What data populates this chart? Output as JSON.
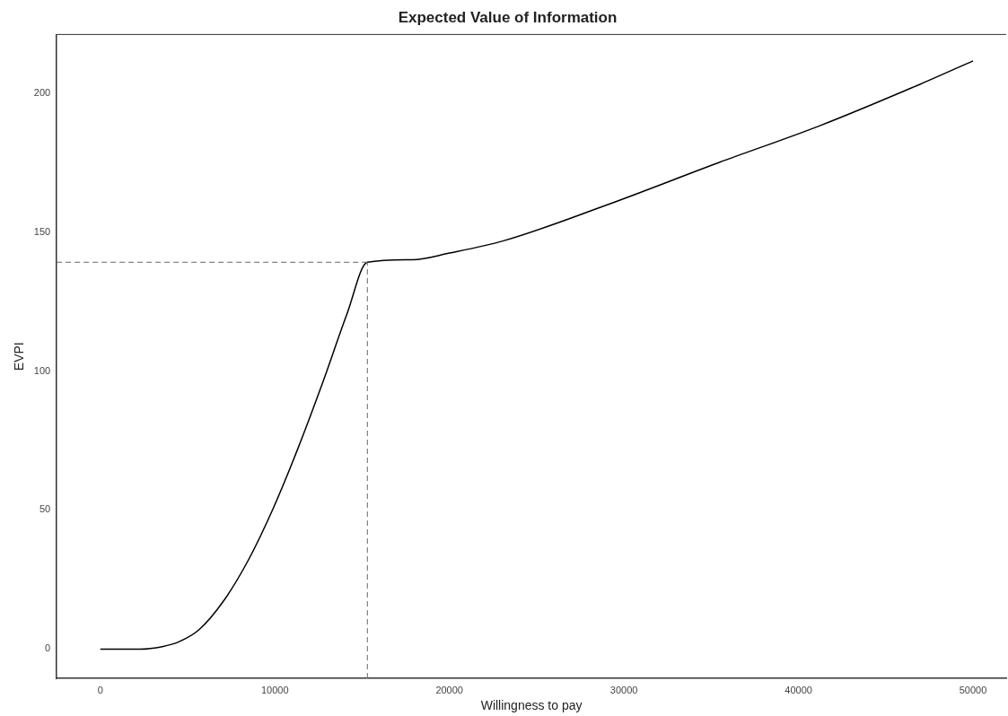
{
  "chart_data": {
    "type": "line",
    "title": "Expected Value of Information",
    "xlabel": "Willingness to pay",
    "ylabel": "EVPI",
    "xlim": [
      -2500,
      51900
    ],
    "xticks": [
      0,
      10000,
      20000,
      30000,
      40000,
      50000
    ],
    "ylim": [
      -10.5,
      221
    ],
    "yticks": [
      0,
      50,
      100,
      150,
      200
    ],
    "grid": false,
    "legend": false,
    "marker": "none",
    "line_style": "solid",
    "series": [
      {
        "color": "#000000",
        "x": [
          0,
          2256,
          3550,
          4490,
          5660,
          7070,
          8480,
          9890,
          11300,
          12710,
          14120,
          15300,
          17880,
          20000,
          23100,
          28970,
          35460,
          41190,
          46930,
          50000
        ],
        "values": [
          0,
          0,
          0.9,
          2.6,
          7,
          17.4,
          32,
          50.4,
          71.8,
          95.3,
          120.3,
          139.1,
          140,
          142.4,
          146.8,
          159.6,
          175,
          188.1,
          203,
          211.5
        ]
      }
    ],
    "ref_lines": [
      {
        "axis": "x",
        "value": 15300,
        "color": "#666666",
        "line_style": "dashed"
      },
      {
        "axis": "y",
        "value": 139.1,
        "color": "#666666",
        "line_style": "dashed"
      }
    ]
  }
}
